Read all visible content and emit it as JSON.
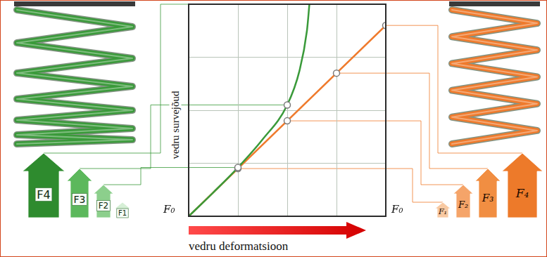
{
  "chart_data": {
    "type": "line",
    "x_label": "vedru deformatsioon",
    "y_label": "vedru survejõud",
    "xlim": [
      0,
      4
    ],
    "ylim": [
      0,
      4
    ],
    "xticks": [
      0,
      1,
      2,
      3,
      4
    ],
    "yticks": [
      0,
      1,
      2,
      3,
      4
    ],
    "grid": true,
    "tick_labels": false,
    "series": [
      {
        "color": "#3a9a3a",
        "line_style": "solid",
        "marker": "none",
        "x": [
          0,
          0.5,
          1,
          1.5,
          2,
          2.25,
          2.4,
          2.45
        ],
        "values": [
          0,
          0.45,
          0.92,
          1.45,
          2.1,
          2.75,
          3.5,
          4
        ]
      },
      {
        "color": "#ef7a2c",
        "line_style": "solid",
        "marker": "none",
        "x": [
          0,
          4
        ],
        "values": [
          0,
          3.6
        ]
      },
      {
        "type": "scatter",
        "color": "#ffffff",
        "marker": "circle",
        "x": [
          1,
          2
        ],
        "values": [
          0.92,
          2.1
        ]
      },
      {
        "type": "scatter",
        "color": "#ffffff",
        "marker": "circle",
        "x": [
          1,
          2,
          3,
          4
        ],
        "values": [
          0.9,
          1.8,
          2.7,
          3.6
        ]
      }
    ]
  },
  "left_spring": {
    "color": "#3a9a3a",
    "colors": [
      "#2e8b2e",
      "#5cb85c",
      "#8ccf8c",
      "#d6efd6"
    ],
    "forces": [
      "F4",
      "F3",
      "F2",
      "F1"
    ],
    "origin_label": "F₀"
  },
  "right_spring": {
    "color": "#ef7a2c",
    "colors": [
      "#f8c9a2",
      "#f5a469",
      "#f18e42",
      "#ed7a2a"
    ],
    "forces": [
      "F₁",
      "F₂",
      "F₃",
      "F₄"
    ],
    "origin_label": "F₀"
  }
}
